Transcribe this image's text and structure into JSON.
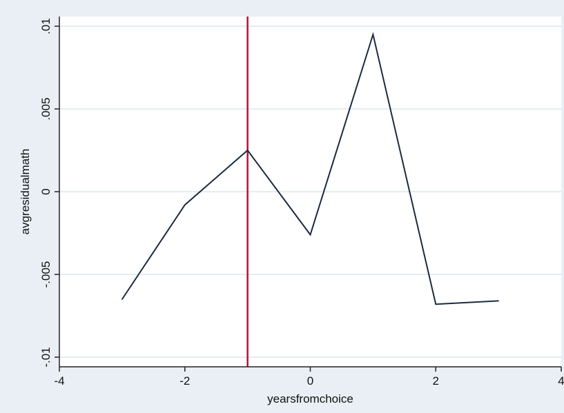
{
  "chart_data": {
    "type": "line",
    "title": "",
    "xlabel": "yearsfromchoice",
    "ylabel": "avgresidualmath",
    "xlim": [
      -4,
      4
    ],
    "ylim": [
      -0.01,
      0.01
    ],
    "x_ticks": [
      -4,
      -2,
      0,
      2,
      4
    ],
    "x_tick_labels": [
      "-4",
      "-2",
      "0",
      "2",
      "4"
    ],
    "y_ticks": [
      -0.01,
      -0.005,
      0,
      0.005,
      0.01
    ],
    "y_tick_labels": [
      "-.01",
      "-.005",
      "0",
      ".005",
      ".01"
    ],
    "grid": "horizontal",
    "series": [
      {
        "x": [
          -3,
          -2,
          -1,
          0,
          1,
          2,
          3
        ],
        "y": [
          -0.0065,
          -0.0008,
          0.0025,
          -0.0026,
          0.0095,
          -0.0068,
          -0.0066
        ],
        "color": "#1a2a40"
      }
    ],
    "reference_lines": [
      {
        "orientation": "vertical",
        "x": -1,
        "color": "#b0113a"
      }
    ],
    "colors": {
      "outer_background": "#e9eff4",
      "plot_background": "#ffffff",
      "gridline": "#dbe5ec",
      "axis": "#222222"
    }
  }
}
